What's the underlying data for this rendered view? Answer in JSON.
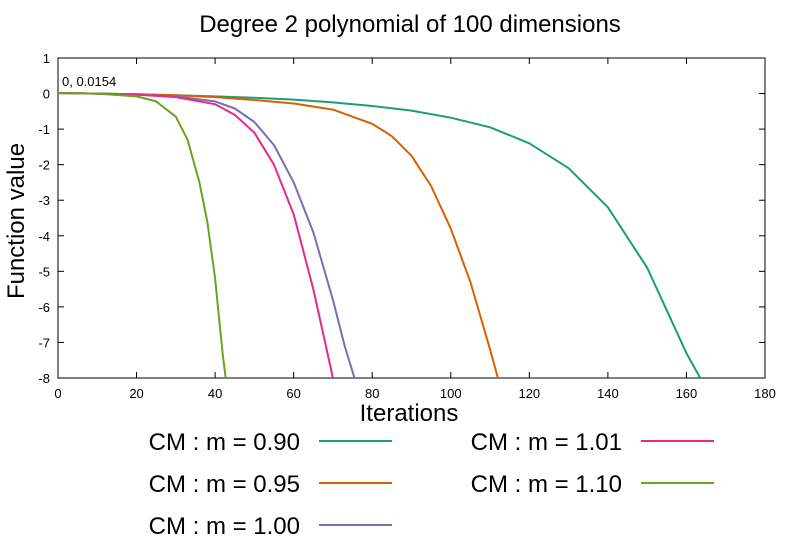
{
  "chart_data": {
    "type": "line",
    "title": "Degree 2 polynomial of 100 dimensions",
    "xlabel": "Iterations",
    "ylabel": "Function value",
    "xlim": [
      0,
      180
    ],
    "ylim": [
      -8,
      1
    ],
    "xticks": [
      0,
      20,
      40,
      60,
      80,
      100,
      120,
      140,
      160,
      180
    ],
    "yticks": [
      1,
      0,
      -1,
      -2,
      -3,
      -4,
      -5,
      -6,
      -7,
      -8
    ],
    "annotation": "0, 0.0154",
    "grid": false,
    "legend_position": "bottom",
    "series": [
      {
        "name": "CM : m = 0.90",
        "color": "#1a9e77",
        "x": [
          0,
          10,
          20,
          30,
          40,
          50,
          60,
          70,
          80,
          90,
          100,
          110,
          120,
          130,
          140,
          150,
          160,
          163.5
        ],
        "y": [
          0.0154,
          0.0,
          -0.02,
          -0.05,
          -0.08,
          -0.12,
          -0.17,
          -0.25,
          -0.35,
          -0.48,
          -0.68,
          -0.95,
          -1.4,
          -2.1,
          -3.2,
          -4.9,
          -7.3,
          -8.0
        ]
      },
      {
        "name": "CM : m = 0.95",
        "color": "#d95f02",
        "x": [
          0,
          10,
          20,
          30,
          40,
          50,
          60,
          70,
          80,
          85,
          90,
          95,
          100,
          105,
          110,
          112
        ],
        "y": [
          0.0154,
          0.0,
          -0.02,
          -0.05,
          -0.1,
          -0.18,
          -0.28,
          -0.45,
          -0.85,
          -1.2,
          -1.75,
          -2.6,
          -3.8,
          -5.3,
          -7.2,
          -8.0
        ]
      },
      {
        "name": "CM : m = 1.00",
        "color": "#7570b3",
        "x": [
          0,
          10,
          20,
          30,
          40,
          45,
          50,
          55,
          60,
          65,
          70,
          73,
          75.5
        ],
        "y": [
          0.0154,
          0.0,
          -0.03,
          -0.08,
          -0.22,
          -0.42,
          -0.8,
          -1.45,
          -2.5,
          -3.9,
          -5.8,
          -7.1,
          -8.0
        ]
      },
      {
        "name": "CM : m = 1.01",
        "color": "#e7298a",
        "x": [
          0,
          10,
          20,
          30,
          40,
          45,
          50,
          55,
          60,
          65,
          68,
          70
        ],
        "y": [
          0.0154,
          0.0,
          -0.03,
          -0.1,
          -0.3,
          -0.6,
          -1.1,
          -2.0,
          -3.4,
          -5.5,
          -7.0,
          -8.0
        ]
      },
      {
        "name": "CM : m = 1.10",
        "color": "#66a61e",
        "x": [
          0,
          10,
          20,
          25,
          30,
          33,
          36,
          38,
          40,
          41,
          42,
          42.7
        ],
        "y": [
          0.0154,
          0.0,
          -0.08,
          -0.22,
          -0.65,
          -1.3,
          -2.5,
          -3.6,
          -5.2,
          -6.3,
          -7.4,
          -8.0
        ]
      }
    ]
  }
}
